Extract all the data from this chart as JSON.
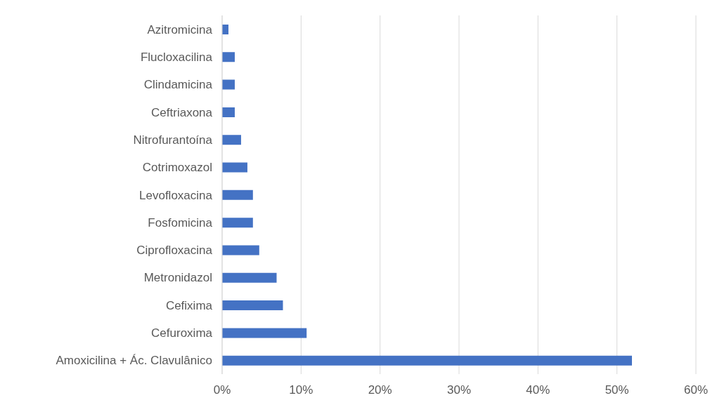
{
  "chart_data": {
    "type": "bar",
    "orientation": "horizontal",
    "categories": [
      "Azitromicina",
      "Flucloxacilina",
      "Clindamicina",
      "Ceftriaxona",
      "Nitrofurantoína",
      "Cotrimoxazol",
      "Levofloxacina",
      "Fosfomicina",
      "Ciprofloxacina",
      "Metronidazol",
      "Cefixima",
      "Cefuroxima",
      "Amoxicilina + Ác. Clavulânico"
    ],
    "values": [
      0.8,
      1.6,
      1.6,
      1.6,
      2.4,
      3.2,
      3.9,
      3.9,
      4.7,
      6.9,
      7.7,
      10.7,
      51.9
    ],
    "color": "#4472c4",
    "xlim": [
      0,
      60
    ],
    "xticks": [
      {
        "value": 0,
        "label": "0%"
      },
      {
        "value": 10,
        "label": "10%"
      },
      {
        "value": 20,
        "label": "20%"
      },
      {
        "value": 30,
        "label": "30%"
      },
      {
        "value": 40,
        "label": "40%"
      },
      {
        "value": 50,
        "label": "50%"
      },
      {
        "value": 60,
        "label": "60%"
      }
    ],
    "grid": "x"
  }
}
